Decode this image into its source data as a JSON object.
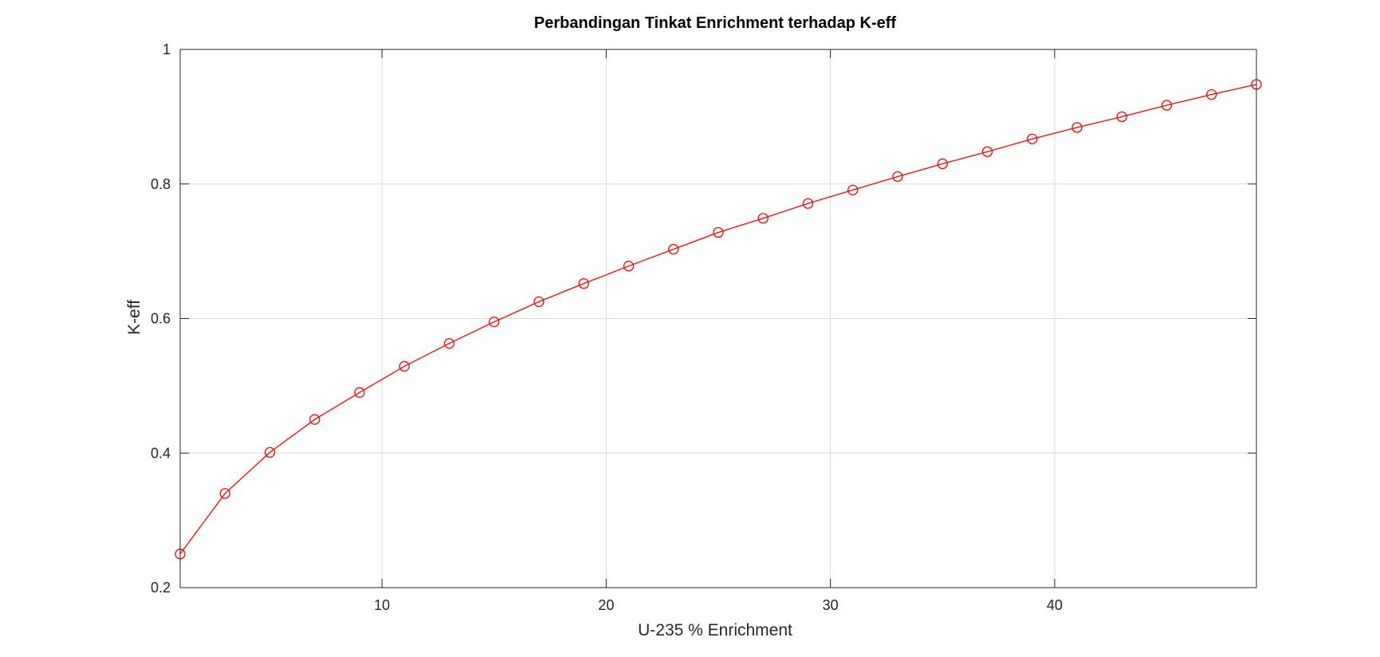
{
  "chart_data": {
    "type": "line",
    "title": "Perbandingan Tinkat Enrichment terhadap K-eff",
    "xlabel": "U-235 % Enrichment",
    "ylabel": "K-eff",
    "xlim": [
      1,
      49
    ],
    "ylim": [
      0.2,
      1.0
    ],
    "xticks": [
      10,
      20,
      30,
      40
    ],
    "yticks": [
      0.2,
      0.4,
      0.6,
      0.8,
      1.0
    ],
    "xtick_labels": [
      "10",
      "20",
      "30",
      "40"
    ],
    "ytick_labels": [
      "0.2",
      "0.4",
      "0.6",
      "0.8",
      "1"
    ],
    "grid": true,
    "series": [
      {
        "color": "#ff0000",
        "marker": "circle",
        "x": [
          1,
          3,
          5,
          7,
          9,
          11,
          13,
          15,
          17,
          19,
          21,
          23,
          25,
          27,
          29,
          31,
          33,
          35,
          37,
          39,
          41,
          43,
          45,
          47,
          49
        ],
        "y": [
          0.25,
          0.34,
          0.401,
          0.45,
          0.49,
          0.529,
          0.563,
          0.595,
          0.625,
          0.652,
          0.678,
          0.703,
          0.728,
          0.749,
          0.771,
          0.791,
          0.811,
          0.83,
          0.848,
          0.867,
          0.884,
          0.9,
          0.917,
          0.933,
          0.948
        ]
      }
    ]
  }
}
